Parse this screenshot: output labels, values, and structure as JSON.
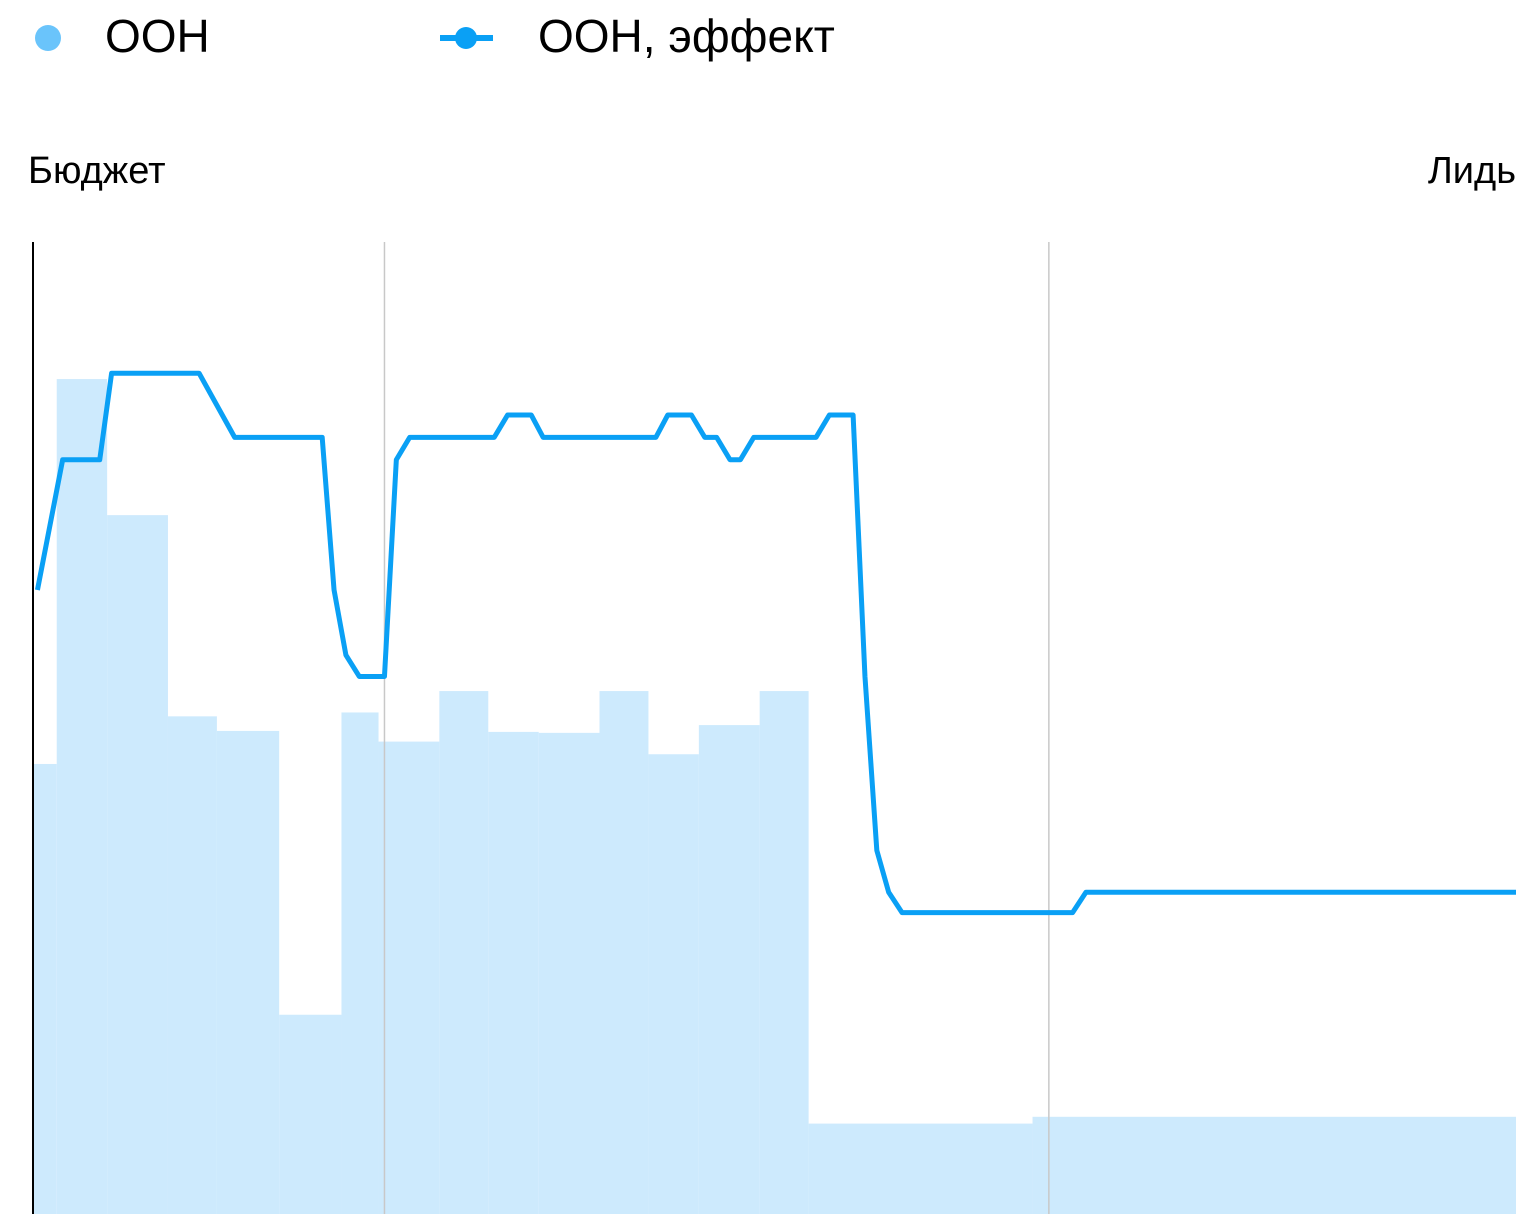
{
  "chart_data": {
    "type": "combo",
    "y_label": "Бюджет",
    "y2_label": "Лидь",
    "xlim": [
      0,
      100
    ],
    "xticks": [
      23.7,
      68.5
    ],
    "ylim": [
      0,
      100
    ],
    "y2lim": [
      0,
      100
    ],
    "grid": true,
    "legend": "top",
    "series": [
      {
        "name": "ООН",
        "type": "histogram",
        "color": "#cdeafd",
        "legend_color": "#6ac4fb",
        "bins": [
          0,
          1.6,
          5.0,
          9.1,
          12.4,
          16.6,
          20.8,
          23.3,
          27.4,
          30.7,
          34.1,
          38.2,
          41.5,
          44.9,
          49.0,
          52.3,
          67.4,
          100
        ],
        "values": [
          46.3,
          85.9,
          71.9,
          51.2,
          49.7,
          20.5,
          51.6,
          48.6,
          53.8,
          49.6,
          49.5,
          53.8,
          47.3,
          50.3,
          53.8,
          9.3,
          10.0
        ]
      },
      {
        "name": "ООН, эффект",
        "type": "line",
        "axis": "y2",
        "color": "#0aa0f5",
        "x": [
          0.3,
          2.0,
          4.5,
          5.3,
          11.2,
          13.6,
          19.5,
          20.3,
          21.1,
          22.0,
          23.7,
          24.5,
          25.4,
          31.1,
          32.0,
          33.6,
          34.4,
          42.0,
          42.8,
          44.4,
          45.3,
          46.1,
          47.0,
          47.7,
          48.6,
          52.8,
          53.7,
          55.3,
          56.1,
          56.9,
          57.7,
          58.6,
          70.1,
          71.0,
          100
        ],
        "values": [
          64.2,
          77.6,
          77.6,
          86.5,
          86.5,
          79.9,
          79.9,
          64.2,
          57.5,
          55.3,
          55.3,
          77.6,
          79.9,
          79.9,
          82.2,
          82.2,
          79.9,
          79.9,
          82.2,
          82.2,
          79.9,
          79.9,
          77.6,
          77.6,
          79.9,
          79.9,
          82.2,
          82.2,
          55.3,
          37.4,
          33.1,
          31.0,
          31.0,
          33.1,
          33.1
        ]
      }
    ]
  }
}
